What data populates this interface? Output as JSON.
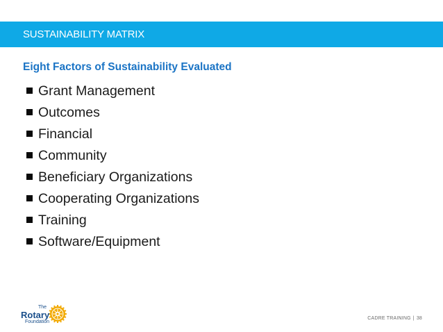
{
  "header": {
    "title": "SUSTAINABILITY MATRIX",
    "bar_color": "#0fa9e6"
  },
  "subtitle": "Eight Factors of Sustainability Evaluated",
  "subtitle_color": "#1b74c5",
  "bullets": [
    "Grant Management",
    "Outcomes",
    "Financial",
    "Community",
    "Beneficiary Organizations",
    "Cooperating Organizations",
    "Training",
    "Software/Equipment"
  ],
  "logo": {
    "the": "The",
    "name": "Rotary",
    "foundation": "Foundation",
    "wheel_color": "#f2a900",
    "text_color": "#1a4f8b"
  },
  "footer": {
    "label": "CADRE TRAINING",
    "separator": "|",
    "page_number": "38"
  }
}
